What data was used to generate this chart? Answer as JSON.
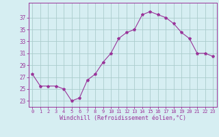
{
  "x": [
    0,
    1,
    2,
    3,
    4,
    5,
    6,
    7,
    8,
    9,
    10,
    11,
    12,
    13,
    14,
    15,
    16,
    17,
    18,
    19,
    20,
    21,
    22,
    23
  ],
  "y": [
    27.5,
    25.5,
    25.5,
    25.5,
    25.0,
    23.0,
    23.5,
    26.5,
    27.5,
    29.5,
    31.0,
    33.5,
    34.5,
    35.0,
    37.5,
    38.0,
    37.5,
    37.0,
    36.0,
    34.5,
    33.5,
    31.0,
    31.0,
    30.5
  ],
  "line_color": "#993399",
  "marker": "*",
  "marker_size": 3,
  "bg_color": "#d6eef2",
  "grid_color": "#aacccc",
  "xlabel": "Windchill (Refroidissement éolien,°C)",
  "xlabel_color": "#993399",
  "tick_color": "#993399",
  "ylabel_ticks": [
    23,
    25,
    27,
    29,
    31,
    33,
    35,
    37
  ],
  "ylim": [
    22.0,
    39.5
  ],
  "xlim": [
    -0.5,
    23.5
  ],
  "xtick_fontsize": 5.0,
  "ytick_fontsize": 5.5,
  "xlabel_fontsize": 6.0
}
